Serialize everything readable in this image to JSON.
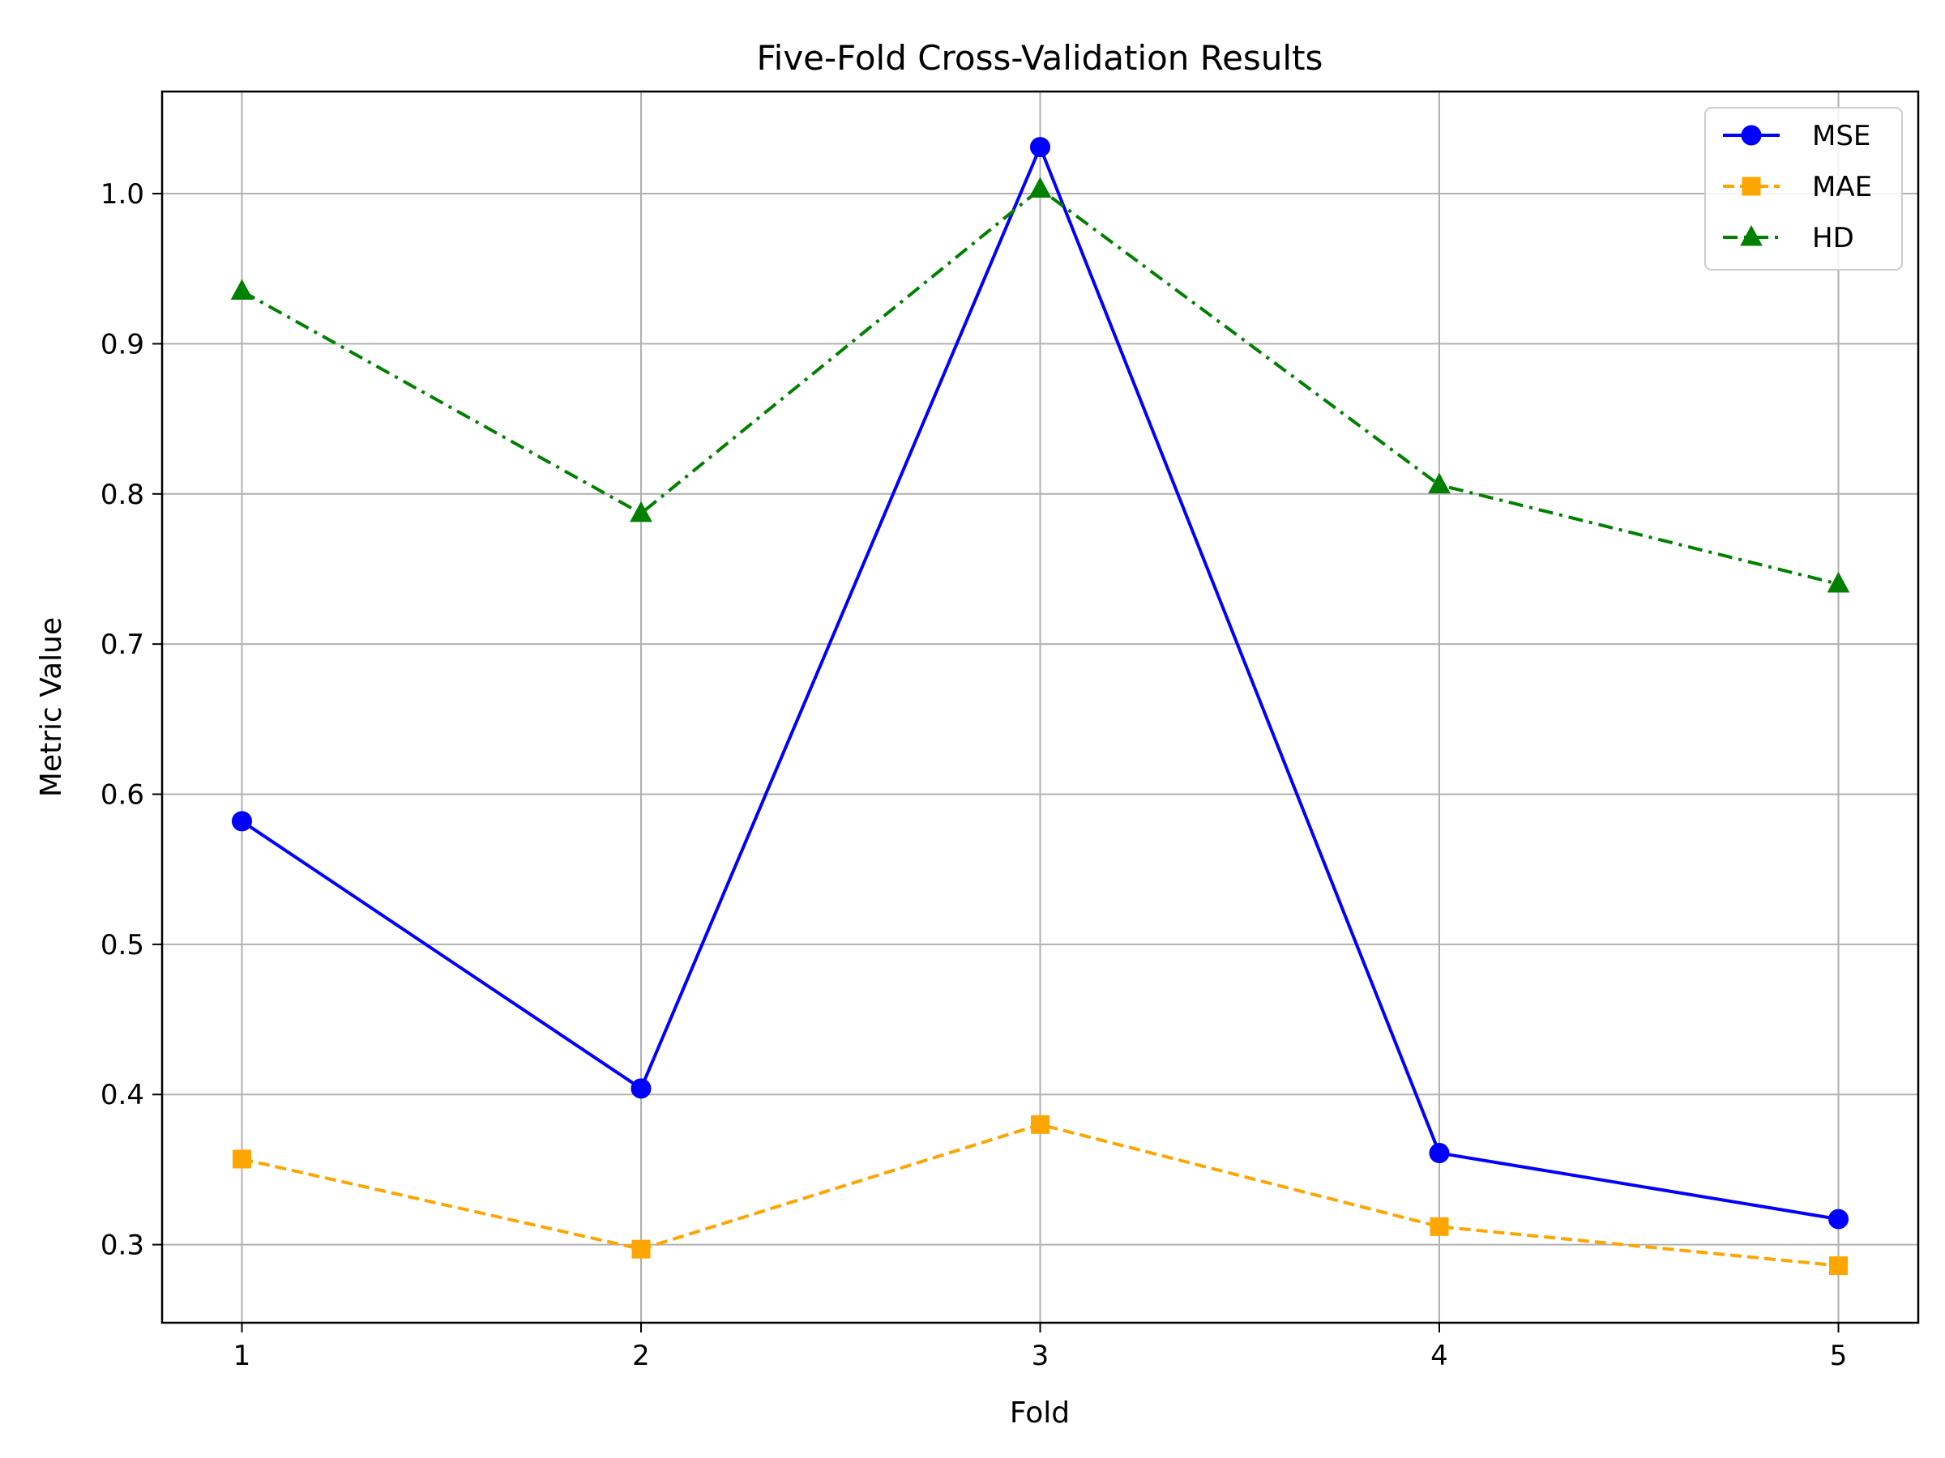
{
  "chart_data": {
    "type": "line",
    "title": "Five-Fold Cross-Validation Results",
    "xlabel": "Fold",
    "ylabel": "Metric Value",
    "x": [
      1,
      2,
      3,
      4,
      5
    ],
    "x_tick_labels": [
      "1",
      "2",
      "3",
      "4",
      "5"
    ],
    "xlim": [
      0.8,
      5.2
    ],
    "ylim": [
      0.248,
      1.068
    ],
    "y_ticks": [
      0.3,
      0.4,
      0.5,
      0.6,
      0.7,
      0.8,
      0.9,
      1.0
    ],
    "y_tick_labels": [
      "0.3",
      "0.4",
      "0.5",
      "0.6",
      "0.7",
      "0.8",
      "0.9",
      "1.0"
    ],
    "grid": true,
    "legend_position": "top-right",
    "series": [
      {
        "name": "MSE",
        "values": [
          0.582,
          0.404,
          1.031,
          0.361,
          0.317
        ],
        "color": "#0000ff",
        "line_style": "solid",
        "marker": "circle"
      },
      {
        "name": "MAE",
        "values": [
          0.357,
          0.297,
          0.38,
          0.312,
          0.286
        ],
        "color": "#ffa500",
        "line_style": "dashed",
        "marker": "square"
      },
      {
        "name": "HD",
        "values": [
          0.935,
          0.787,
          1.003,
          0.806,
          0.74
        ],
        "color": "#008000",
        "line_style": "dashdot",
        "marker": "triangle"
      }
    ]
  }
}
